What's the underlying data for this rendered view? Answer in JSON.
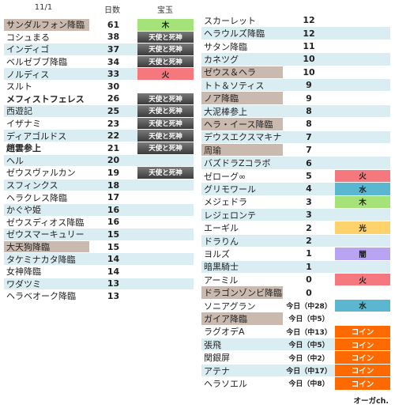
{
  "left": {
    "headers": {
      "date": "11/1",
      "days": "日数",
      "gem": "宝玉"
    },
    "rows": [
      {
        "name": "サンダルフォン降臨",
        "days": "61",
        "gem": "木",
        "bg": "#c9b9ae",
        "gemColor": "#a5e27a",
        "bold": false,
        "gemText": "#222"
      },
      {
        "name": "コシュまる",
        "days": "38",
        "gem": "天使と死神",
        "bg": "#ffffff",
        "gemColor": "#555555",
        "bold": false,
        "gemText": "#ffffff"
      },
      {
        "name": "インディゴ",
        "days": "37",
        "gem": "天使と死神",
        "bg": "#daedf3",
        "gemColor": "#555555",
        "bold": false,
        "gemText": "#ffffff"
      },
      {
        "name": "ベルゼブブ降臨",
        "days": "34",
        "gem": "天使と死神",
        "bg": "#ffffff",
        "gemColor": "#555555",
        "bold": false,
        "gemText": "#ffffff"
      },
      {
        "name": "ノルディス",
        "days": "33",
        "gem": "火",
        "bg": "#daedf3",
        "gemColor": "#f4787e",
        "bold": false,
        "gemText": "#222"
      },
      {
        "name": "スルト",
        "days": "30",
        "gem": "",
        "bg": "#ffffff",
        "gemColor": "",
        "bold": false,
        "gemText": "#222"
      },
      {
        "name": "メフィストフェレス",
        "days": "26",
        "gem": "天使と死神",
        "bg": "#ffffff",
        "gemColor": "#555555",
        "bold": true,
        "gemText": "#ffffff"
      },
      {
        "name": "西遊記",
        "days": "25",
        "gem": "天使と死神",
        "bg": "#daedf3",
        "gemColor": "#555555",
        "bold": false,
        "gemText": "#ffffff"
      },
      {
        "name": "イザナミ",
        "days": "23",
        "gem": "天使と死神",
        "bg": "#ffffff",
        "gemColor": "#555555",
        "bold": false,
        "gemText": "#ffffff"
      },
      {
        "name": "ディアゴルドス",
        "days": "22",
        "gem": "天使と死神",
        "bg": "#daedf3",
        "gemColor": "#555555",
        "bold": false,
        "gemText": "#ffffff"
      },
      {
        "name": "趙雲参上",
        "days": "21",
        "gem": "天使と死神",
        "bg": "#ffffff",
        "gemColor": "#555555",
        "bold": true,
        "gemText": "#ffffff"
      },
      {
        "name": "ヘル",
        "days": "20",
        "gem": "",
        "bg": "#daedf3",
        "gemColor": "",
        "bold": false,
        "gemText": "#222"
      },
      {
        "name": "ゼウスヴァルカン",
        "days": "19",
        "gem": "天使と死神",
        "bg": "#ffffff",
        "gemColor": "#555555",
        "bold": false,
        "gemText": "#ffffff"
      },
      {
        "name": "スフィンクス",
        "days": "18",
        "gem": "",
        "bg": "#daedf3",
        "gemColor": "",
        "bold": false,
        "gemText": "#222"
      },
      {
        "name": "ヘラクレス降臨",
        "days": "17",
        "gem": "",
        "bg": "#ffffff",
        "gemColor": "",
        "bold": false,
        "gemText": "#222"
      },
      {
        "name": "かぐや姫",
        "days": "16",
        "gem": "",
        "bg": "#daedf3",
        "gemColor": "",
        "bold": false,
        "gemText": "#222"
      },
      {
        "name": "ゼウスディオス降臨",
        "days": "16",
        "gem": "",
        "bg": "#ffffff",
        "gemColor": "",
        "bold": false,
        "gemText": "#222"
      },
      {
        "name": "ゼウスマーキュリー",
        "days": "15",
        "gem": "",
        "bg": "#daedf3",
        "gemColor": "",
        "bold": false,
        "gemText": "#222"
      },
      {
        "name": "大天狗降臨",
        "days": "15",
        "gem": "",
        "bg": "#c9b9ae",
        "gemColor": "",
        "bold": false,
        "gemText": "#222"
      },
      {
        "name": "タケミナカタ降臨",
        "days": "14",
        "gem": "",
        "bg": "#daedf3",
        "gemColor": "",
        "bold": false,
        "gemText": "#222"
      },
      {
        "name": "女神降臨",
        "days": "14",
        "gem": "",
        "bg": "#ffffff",
        "gemColor": "",
        "bold": false,
        "gemText": "#222"
      },
      {
        "name": "ワダツミ",
        "days": "13",
        "gem": "",
        "bg": "#daedf3",
        "gemColor": "",
        "bold": false,
        "gemText": "#222"
      },
      {
        "name": "ヘラベオーク降臨",
        "days": "13",
        "gem": "",
        "bg": "#ffffff",
        "gemColor": "",
        "bold": false,
        "gemText": "#222"
      }
    ]
  },
  "right": {
    "rows": [
      {
        "name": "スカーレット",
        "days": "12",
        "gem": "",
        "bg": "#ffffff",
        "gemColor": "",
        "small": false,
        "gemText": "#222"
      },
      {
        "name": "ヘラウルズ降臨",
        "days": "12",
        "gem": "",
        "bg": "#daedf3",
        "gemColor": "",
        "small": false,
        "gemText": "#222"
      },
      {
        "name": "サタン降臨",
        "days": "11",
        "gem": "",
        "bg": "#ffffff",
        "gemColor": "",
        "small": false,
        "gemText": "#222"
      },
      {
        "name": "カネツグ",
        "days": "10",
        "gem": "",
        "bg": "#daedf3",
        "gemColor": "",
        "small": false,
        "gemText": "#222"
      },
      {
        "name": "ゼウス＆ヘラ",
        "days": "10",
        "gem": "",
        "bg": "#c9b9ae",
        "gemColor": "",
        "small": false,
        "gemText": "#222"
      },
      {
        "name": "トト＆ソティス",
        "days": "9",
        "gem": "",
        "bg": "#daedf3",
        "gemColor": "",
        "small": false,
        "gemText": "#222"
      },
      {
        "name": "ノア降臨",
        "days": "9",
        "gem": "",
        "bg": "#c9b9ae",
        "gemColor": "",
        "small": false,
        "gemText": "#222"
      },
      {
        "name": "大泥棒参上",
        "days": "8",
        "gem": "",
        "bg": "#daedf3",
        "gemColor": "",
        "small": false,
        "gemText": "#222"
      },
      {
        "name": "ヘラ・イース降臨",
        "days": "8",
        "gem": "",
        "bg": "#c9b9ae",
        "gemColor": "",
        "small": false,
        "gemText": "#222"
      },
      {
        "name": "デウスエクスマキナ",
        "days": "7",
        "gem": "",
        "bg": "#daedf3",
        "gemColor": "",
        "small": false,
        "gemText": "#222"
      },
      {
        "name": "周瑜",
        "days": "7",
        "gem": "",
        "bg": "#c9b9ae",
        "gemColor": "",
        "small": false,
        "gemText": "#222"
      },
      {
        "name": "バズドラZコラボ",
        "days": "6",
        "gem": "",
        "bg": "#daedf3",
        "gemColor": "",
        "small": false,
        "gemText": "#222"
      },
      {
        "name": "ゼローグ∞",
        "days": "5",
        "gem": "火",
        "bg": "#ffffff",
        "gemColor": "#f4787e",
        "small": false,
        "gemText": "#222"
      },
      {
        "name": "グリモワール",
        "days": "4",
        "gem": "水",
        "bg": "#daedf3",
        "gemColor": "#5ab7cf",
        "small": false,
        "gemText": "#222"
      },
      {
        "name": "メジェドラ",
        "days": "3",
        "gem": "木",
        "bg": "#ffffff",
        "gemColor": "#a5e27a",
        "small": false,
        "gemText": "#222"
      },
      {
        "name": "レジェロンテ",
        "days": "3",
        "gem": "",
        "bg": "#daedf3",
        "gemColor": "",
        "small": false,
        "gemText": "#222"
      },
      {
        "name": "エーギル",
        "days": "2",
        "gem": "光",
        "bg": "#ffffff",
        "gemColor": "#ffd36b",
        "small": false,
        "gemText": "#222"
      },
      {
        "name": "ドラりん",
        "days": "2",
        "gem": "",
        "bg": "#daedf3",
        "gemColor": "",
        "small": false,
        "gemText": "#222"
      },
      {
        "name": "ヨルズ",
        "days": "1",
        "gem": "闇",
        "bg": "#ffffff",
        "gemColor": "#b9a4f2",
        "small": false,
        "gemText": "#222"
      },
      {
        "name": "暗黒騎士",
        "days": "1",
        "gem": "",
        "bg": "#daedf3",
        "gemColor": "",
        "small": false,
        "gemText": "#222"
      },
      {
        "name": "アーミル",
        "days": "0",
        "gem": "火",
        "bg": "#ffffff",
        "gemColor": "#f4787e",
        "small": false,
        "gemText": "#222"
      },
      {
        "name": "ドラゴンゾンビ降臨",
        "days": "0",
        "gem": "",
        "bg": "#c9b9ae",
        "gemColor": "",
        "small": false,
        "gemText": "#222"
      },
      {
        "name": "ソニアグラン",
        "days": "今日（中28）",
        "gem": "水",
        "bg": "#ffffff",
        "gemColor": "#5ab7cf",
        "small": true,
        "gemText": "#222"
      },
      {
        "name": "ガイア降臨",
        "days": "今日（中5）",
        "gem": "",
        "bg": "#c9b9ae",
        "gemColor": "",
        "small": true,
        "gemText": "#222"
      },
      {
        "name": "ラグオデA",
        "days": "今日（中13）",
        "gem": "コイン",
        "bg": "#ffffff",
        "gemColor": "#ff6a00",
        "small": true,
        "gemText": "#ffffff"
      },
      {
        "name": "張飛",
        "days": "今日（中5）",
        "gem": "コイン",
        "bg": "#daedf3",
        "gemColor": "#ff6a00",
        "small": true,
        "gemText": "#ffffff"
      },
      {
        "name": "関銀屏",
        "days": "今日（中2）",
        "gem": "コイン",
        "bg": "#ffffff",
        "gemColor": "#ff6a00",
        "small": true,
        "gemText": "#ffffff"
      },
      {
        "name": "アテナ",
        "days": "今日（中17）",
        "gem": "コイン",
        "bg": "#daedf3",
        "gemColor": "#ff6a00",
        "small": true,
        "gemText": "#ffffff"
      },
      {
        "name": "ヘラソエル",
        "days": "今日（中8）",
        "gem": "コイン",
        "bg": "#ffffff",
        "gemColor": "#ff6a00",
        "small": true,
        "gemText": "#ffffff"
      }
    ],
    "footer": "オーガch."
  }
}
